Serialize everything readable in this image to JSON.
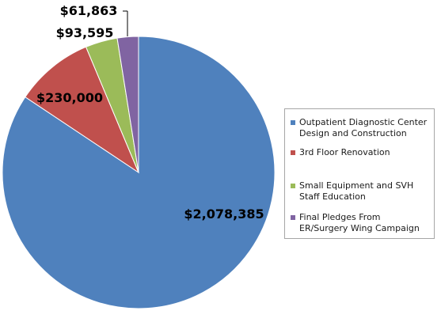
{
  "chart_data": {
    "type": "pie",
    "categories": [
      "Outpatient Diagnostic Center Design and Construction",
      "3rd Floor Renovation",
      "Small Equipment and SVH Staff Education",
      "Final Pledges From ER/Surgery Wing Campaign"
    ],
    "values": [
      2078385,
      230000,
      93595,
      61863
    ],
    "data_labels": [
      "$2,078,385",
      "$230,000",
      "$93,595",
      "$61,863"
    ],
    "colors": [
      "#4f81bd",
      "#c0504d",
      "#9bbb59",
      "#8064a2"
    ],
    "legend": "right",
    "start_angle_deg": 0,
    "direction": "clockwise"
  },
  "legend_items": [
    {
      "label": "Outpatient Diagnostic Center Design and Construction",
      "color": "#4f81bd"
    },
    {
      "label": "3rd Floor Renovation",
      "color": "#c0504d"
    },
    {
      "label": "Small Equipment and SVH Staff Education",
      "color": "#9bbb59"
    },
    {
      "label": "Final Pledges From ER/Surgery Wing Campaign",
      "color": "#8064a2"
    }
  ]
}
